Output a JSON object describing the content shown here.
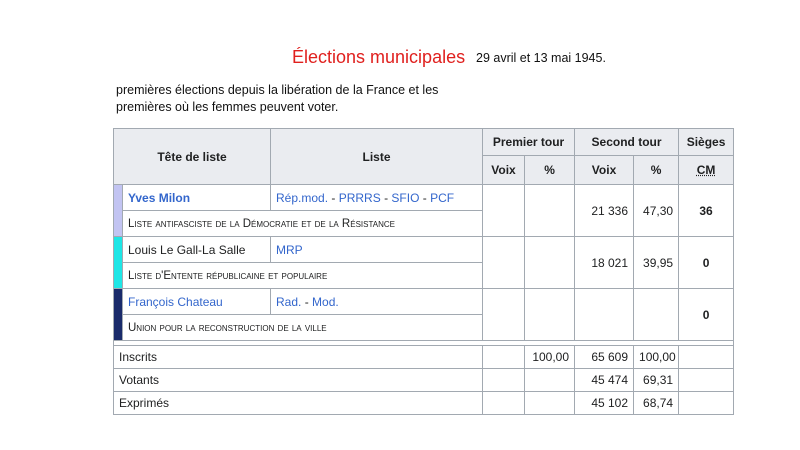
{
  "header": {
    "title": "Élections municipales",
    "dates": "29 avril et 13 mai 1945.",
    "intro": "premières élections depuis la libération de la France et les premières où les femmes peuvent voter."
  },
  "table": {
    "headers": {
      "head": "Tête de liste",
      "list": "Liste",
      "first_round": "Premier tour",
      "second_round": "Second tour",
      "seats": "Sièges",
      "votes": "Voix",
      "pct": "%",
      "votes2": "Voix",
      "pct2": "%",
      "cm": "CM"
    },
    "rows": [
      {
        "head": "Yves Milon",
        "color": "#c2c4f2",
        "parties": [
          "Rép.mod.",
          "PRRRS",
          "SFIO",
          "PCF"
        ],
        "list_name": "Liste antifasciste de la Démocratie et de la Résistance",
        "votes1": "",
        "pct1": "",
        "votes2": "21 336",
        "pct2": "47,30",
        "seats": "36"
      },
      {
        "head": "Louis Le Gall-La Salle",
        "color": "#1ee6e6",
        "parties": [
          "MRP"
        ],
        "list_name": "Liste d'Entente républicaine et populaire",
        "votes1": "",
        "pct1": "",
        "votes2": "18 021",
        "pct2": "39,95",
        "seats": "0"
      },
      {
        "head": "François Chateau",
        "color": "#1a2b6b",
        "parties": [
          "Rad.",
          "Mod."
        ],
        "list_name": "Union pour la reconstruction de la ville",
        "votes1": "",
        "pct1": "",
        "votes2": "",
        "pct2": "",
        "seats": "0"
      }
    ],
    "stats": [
      {
        "label": "Inscrits",
        "votes1": "",
        "pct1": "100,00",
        "votes2": "65 609",
        "pct2": "100,00"
      },
      {
        "label": "Votants",
        "votes1": "",
        "pct1": "",
        "votes2": "45 474",
        "pct2": "69,31"
      },
      {
        "label": "Exprimés",
        "votes1": "",
        "pct1": "",
        "votes2": "45 102",
        "pct2": "68,74"
      }
    ]
  }
}
